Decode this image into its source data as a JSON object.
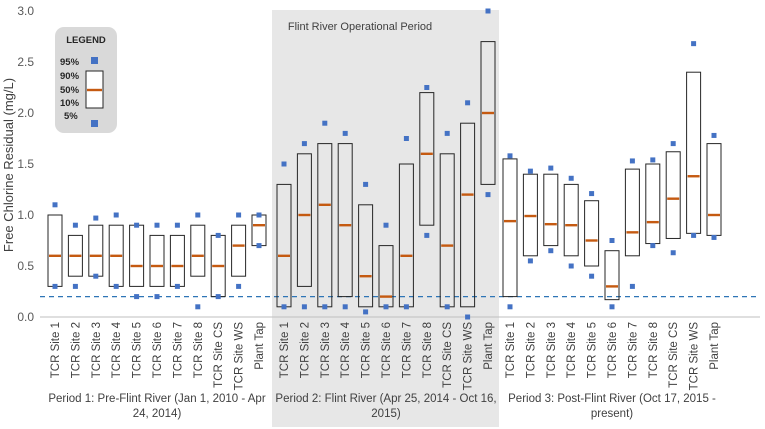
{
  "chart_data": {
    "type": "boxplot",
    "ylabel": "Free Chlorine Residual (mg/L)",
    "ylim": [
      0,
      3.0
    ],
    "yticks": [
      "0.0",
      "0.5",
      "1.0",
      "1.5",
      "2.0",
      "2.5",
      "3.0"
    ],
    "reference_line": 0.2,
    "shaded_region_title": "Flint River Operational Period",
    "legend": {
      "title": "LEGEND",
      "labels": [
        "95%",
        "90%",
        "50%",
        "10%",
        "5%"
      ]
    },
    "colors": {
      "median": "#c55a11",
      "outlier": "#4472c4",
      "shade": "#e7e7e7",
      "refline": "#2e75b6"
    },
    "periods": [
      {
        "label": "Period 1: Pre-Flint River (Jan 1, 2010 - Apr 24, 2014)",
        "boxes": [
          {
            "name": "TCR Site 1",
            "p5": 0.3,
            "p10": 0.3,
            "p50": 0.6,
            "p90": 1.0,
            "p95": 1.1
          },
          {
            "name": "TCR Site 2",
            "p5": 0.3,
            "p10": 0.4,
            "p50": 0.6,
            "p90": 0.8,
            "p95": 0.9
          },
          {
            "name": "TCR Site 3",
            "p5": 0.4,
            "p10": 0.4,
            "p50": 0.6,
            "p90": 0.9,
            "p95": 0.97
          },
          {
            "name": "TCR Site 4",
            "p5": 0.3,
            "p10": 0.3,
            "p50": 0.6,
            "p90": 0.9,
            "p95": 1.0
          },
          {
            "name": "TCR Site 5",
            "p5": 0.2,
            "p10": 0.3,
            "p50": 0.5,
            "p90": 0.9,
            "p95": 0.9
          },
          {
            "name": "TCR Site 6",
            "p5": 0.2,
            "p10": 0.3,
            "p50": 0.5,
            "p90": 0.8,
            "p95": 0.9
          },
          {
            "name": "TCR Site 7",
            "p5": 0.3,
            "p10": 0.3,
            "p50": 0.5,
            "p90": 0.8,
            "p95": 0.9
          },
          {
            "name": "TCR Site 8",
            "p5": 0.1,
            "p10": 0.4,
            "p50": 0.6,
            "p90": 0.9,
            "p95": 1.0
          },
          {
            "name": "TCR Site CS",
            "p5": 0.2,
            "p10": 0.2,
            "p50": 0.5,
            "p90": 0.8,
            "p95": 0.8
          },
          {
            "name": "TCR Site WS",
            "p5": 0.3,
            "p10": 0.4,
            "p50": 0.7,
            "p90": 0.9,
            "p95": 1.0
          },
          {
            "name": "Plant Tap",
            "p5": 0.7,
            "p10": 0.7,
            "p50": 0.9,
            "p90": 1.0,
            "p95": 1.0
          }
        ]
      },
      {
        "label": "Period 2: Flint River (Apr 25, 2014 - Oct 16, 2015)",
        "boxes": [
          {
            "name": "TCR Site 1",
            "p5": 0.1,
            "p10": 0.1,
            "p50": 0.6,
            "p90": 1.3,
            "p95": 1.5
          },
          {
            "name": "TCR Site 2",
            "p5": 0.1,
            "p10": 0.3,
            "p50": 1.0,
            "p90": 1.6,
            "p95": 1.7
          },
          {
            "name": "TCR Site 3",
            "p5": 0.1,
            "p10": 0.1,
            "p50": 1.1,
            "p90": 1.7,
            "p95": 1.9
          },
          {
            "name": "TCR Site 4",
            "p5": 0.1,
            "p10": 0.2,
            "p50": 0.9,
            "p90": 1.7,
            "p95": 1.8
          },
          {
            "name": "TCR Site 5",
            "p5": 0.05,
            "p10": 0.1,
            "p50": 0.4,
            "p90": 1.1,
            "p95": 1.3
          },
          {
            "name": "TCR Site 6",
            "p5": 0.1,
            "p10": 0.1,
            "p50": 0.2,
            "p90": 0.7,
            "p95": 0.9
          },
          {
            "name": "TCR Site 7",
            "p5": 0.1,
            "p10": 0.1,
            "p50": 0.6,
            "p90": 1.5,
            "p95": 1.75
          },
          {
            "name": "TCR Site 8",
            "p5": 0.8,
            "p10": 0.9,
            "p50": 1.6,
            "p90": 2.2,
            "p95": 2.25
          },
          {
            "name": "TCR Site CS",
            "p5": 0.1,
            "p10": 0.1,
            "p50": 0.7,
            "p90": 1.6,
            "p95": 1.8
          },
          {
            "name": "TCR Site WS",
            "p5": 0.0,
            "p10": 0.1,
            "p50": 1.2,
            "p90": 1.9,
            "p95": 2.1
          },
          {
            "name": "Plant Tap",
            "p5": 1.2,
            "p10": 1.3,
            "p50": 2.0,
            "p90": 2.7,
            "p95": 3.0
          }
        ]
      },
      {
        "label": "Period 3: Post-Flint River (Oct 17, 2015 - present)",
        "boxes": [
          {
            "name": "TCR Site 1",
            "p5": 0.1,
            "p10": 0.2,
            "p50": 0.94,
            "p90": 1.55,
            "p95": 1.58
          },
          {
            "name": "TCR Site 2",
            "p5": 0.55,
            "p10": 0.6,
            "p50": 0.99,
            "p90": 1.4,
            "p95": 1.43
          },
          {
            "name": "TCR Site 3",
            "p5": 0.65,
            "p10": 0.7,
            "p50": 0.91,
            "p90": 1.4,
            "p95": 1.46
          },
          {
            "name": "TCR Site 4",
            "p5": 0.5,
            "p10": 0.6,
            "p50": 0.9,
            "p90": 1.3,
            "p95": 1.36
          },
          {
            "name": "TCR Site 5",
            "p5": 0.4,
            "p10": 0.5,
            "p50": 0.75,
            "p90": 1.14,
            "p95": 1.21
          },
          {
            "name": "TCR Site 6",
            "p5": 0.1,
            "p10": 0.17,
            "p50": 0.3,
            "p90": 0.65,
            "p95": 0.75
          },
          {
            "name": "TCR Site 7",
            "p5": 0.3,
            "p10": 0.6,
            "p50": 0.83,
            "p90": 1.45,
            "p95": 1.53
          },
          {
            "name": "TCR Site 8",
            "p5": 0.7,
            "p10": 0.72,
            "p50": 0.93,
            "p90": 1.5,
            "p95": 1.54
          },
          {
            "name": "TCR Site CS",
            "p5": 0.63,
            "p10": 0.77,
            "p50": 1.16,
            "p90": 1.62,
            "p95": 1.7
          },
          {
            "name": "TCR Site WS",
            "p5": 0.8,
            "p10": 0.82,
            "p50": 1.38,
            "p90": 2.4,
            "p95": 2.68
          },
          {
            "name": "Plant Tap",
            "p5": 0.78,
            "p10": 0.8,
            "p50": 1.0,
            "p90": 1.7,
            "p95": 1.78
          }
        ]
      }
    ]
  }
}
